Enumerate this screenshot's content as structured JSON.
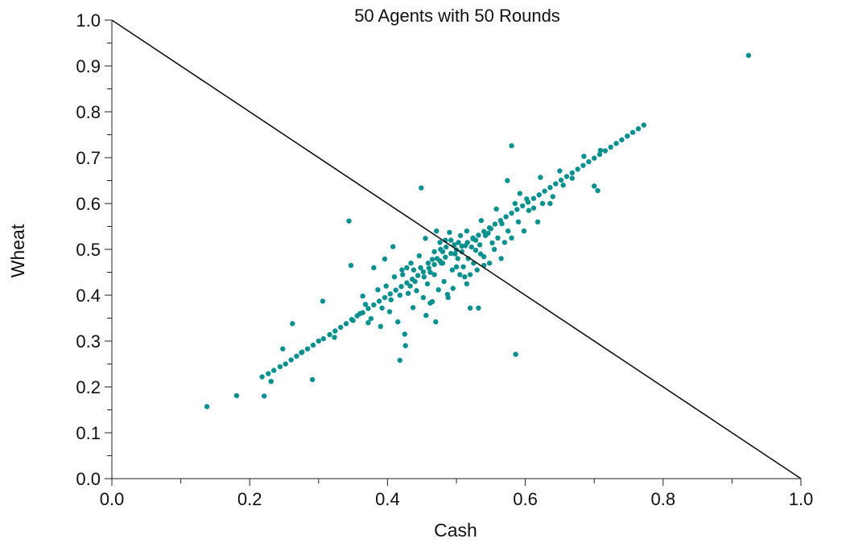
{
  "chart_data": {
    "type": "scatter",
    "title": "50 Agents with 50 Rounds",
    "xlabel": "Cash",
    "ylabel": "Wheat",
    "xlim": [
      0.0,
      1.0
    ],
    "ylim": [
      0.0,
      1.0
    ],
    "x_ticks": [
      "0.0",
      "0.2",
      "0.4",
      "0.6",
      "0.8",
      "1.0"
    ],
    "y_ticks": [
      "0.0",
      "0.1",
      "0.2",
      "0.3",
      "0.4",
      "0.5",
      "0.6",
      "0.7",
      "0.8",
      "0.9",
      "1.0"
    ],
    "grid": false,
    "legend": "none",
    "point_color": "#0a918f",
    "line_color": "#111111",
    "reference_line": {
      "x": [
        0.0,
        1.0
      ],
      "y": [
        1.0,
        0.0
      ]
    },
    "points": [
      [
        0.138,
        0.157
      ],
      [
        0.181,
        0.181
      ],
      [
        0.221,
        0.18
      ],
      [
        0.218,
        0.222
      ],
      [
        0.227,
        0.229
      ],
      [
        0.235,
        0.236
      ],
      [
        0.244,
        0.244
      ],
      [
        0.252,
        0.25
      ],
      [
        0.26,
        0.259
      ],
      [
        0.268,
        0.267
      ],
      [
        0.276,
        0.276
      ],
      [
        0.284,
        0.283
      ],
      [
        0.292,
        0.291
      ],
      [
        0.3,
        0.3
      ],
      [
        0.307,
        0.305
      ],
      [
        0.316,
        0.314
      ],
      [
        0.324,
        0.322
      ],
      [
        0.332,
        0.33
      ],
      [
        0.34,
        0.338
      ],
      [
        0.348,
        0.347
      ],
      [
        0.356,
        0.355
      ],
      [
        0.364,
        0.362
      ],
      [
        0.372,
        0.371
      ],
      [
        0.38,
        0.379
      ],
      [
        0.388,
        0.387
      ],
      [
        0.396,
        0.395
      ],
      [
        0.404,
        0.403
      ],
      [
        0.412,
        0.411
      ],
      [
        0.42,
        0.419
      ],
      [
        0.428,
        0.427
      ],
      [
        0.436,
        0.435
      ],
      [
        0.444,
        0.443
      ],
      [
        0.452,
        0.451
      ],
      [
        0.46,
        0.459
      ],
      [
        0.468,
        0.467
      ],
      [
        0.476,
        0.475
      ],
      [
        0.484,
        0.483
      ],
      [
        0.492,
        0.491
      ],
      [
        0.5,
        0.499
      ],
      [
        0.508,
        0.507
      ],
      [
        0.516,
        0.515
      ],
      [
        0.524,
        0.523
      ],
      [
        0.532,
        0.531
      ],
      [
        0.54,
        0.539
      ],
      [
        0.548,
        0.547
      ],
      [
        0.556,
        0.555
      ],
      [
        0.564,
        0.563
      ],
      [
        0.572,
        0.571
      ],
      [
        0.58,
        0.579
      ],
      [
        0.588,
        0.587
      ],
      [
        0.596,
        0.595
      ],
      [
        0.604,
        0.603
      ],
      [
        0.612,
        0.611
      ],
      [
        0.62,
        0.619
      ],
      [
        0.628,
        0.627
      ],
      [
        0.636,
        0.635
      ],
      [
        0.644,
        0.643
      ],
      [
        0.652,
        0.651
      ],
      [
        0.66,
        0.659
      ],
      [
        0.668,
        0.667
      ],
      [
        0.676,
        0.675
      ],
      [
        0.684,
        0.683
      ],
      [
        0.692,
        0.691
      ],
      [
        0.7,
        0.699
      ],
      [
        0.708,
        0.707
      ],
      [
        0.716,
        0.715
      ],
      [
        0.724,
        0.723
      ],
      [
        0.732,
        0.731
      ],
      [
        0.74,
        0.739
      ],
      [
        0.748,
        0.747
      ],
      [
        0.756,
        0.755
      ],
      [
        0.764,
        0.763
      ],
      [
        0.772,
        0.771
      ],
      [
        0.924,
        0.923
      ],
      [
        0.231,
        0.212
      ],
      [
        0.248,
        0.283
      ],
      [
        0.262,
        0.338
      ],
      [
        0.275,
        0.275
      ],
      [
        0.291,
        0.216
      ],
      [
        0.306,
        0.387
      ],
      [
        0.323,
        0.308
      ],
      [
        0.344,
        0.562
      ],
      [
        0.347,
        0.465
      ],
      [
        0.36,
        0.36
      ],
      [
        0.364,
        0.398
      ],
      [
        0.376,
        0.349
      ],
      [
        0.38,
        0.46
      ],
      [
        0.386,
        0.412
      ],
      [
        0.39,
        0.332
      ],
      [
        0.396,
        0.479
      ],
      [
        0.403,
        0.364
      ],
      [
        0.408,
        0.506
      ],
      [
        0.415,
        0.342
      ],
      [
        0.418,
        0.258
      ],
      [
        0.421,
        0.455
      ],
      [
        0.425,
        0.315
      ],
      [
        0.43,
        0.404
      ],
      [
        0.434,
        0.47
      ],
      [
        0.437,
        0.373
      ],
      [
        0.44,
        0.43
      ],
      [
        0.446,
        0.486
      ],
      [
        0.449,
        0.634
      ],
      [
        0.452,
        0.395
      ],
      [
        0.455,
        0.524
      ],
      [
        0.458,
        0.425
      ],
      [
        0.462,
        0.383
      ],
      [
        0.465,
        0.478
      ],
      [
        0.468,
        0.445
      ],
      [
        0.471,
        0.54
      ],
      [
        0.474,
        0.412
      ],
      [
        0.477,
        0.5
      ],
      [
        0.48,
        0.47
      ],
      [
        0.484,
        0.52
      ],
      [
        0.487,
        0.402
      ],
      [
        0.49,
        0.537
      ],
      [
        0.494,
        0.455
      ],
      [
        0.497,
        0.51
      ],
      [
        0.502,
        0.48
      ],
      [
        0.506,
        0.53
      ],
      [
        0.51,
        0.462
      ],
      [
        0.513,
        0.508
      ],
      [
        0.517,
        0.48
      ],
      [
        0.52,
        0.372
      ],
      [
        0.524,
        0.525
      ],
      [
        0.528,
        0.498
      ],
      [
        0.532,
        0.372
      ],
      [
        0.536,
        0.563
      ],
      [
        0.54,
        0.484
      ],
      [
        0.546,
        0.535
      ],
      [
        0.552,
        0.514
      ],
      [
        0.558,
        0.588
      ],
      [
        0.566,
        0.556
      ],
      [
        0.574,
        0.65
      ],
      [
        0.58,
        0.726
      ],
      [
        0.585,
        0.6
      ],
      [
        0.586,
        0.271
      ],
      [
        0.592,
        0.622
      ],
      [
        0.602,
        0.61
      ],
      [
        0.612,
        0.59
      ],
      [
        0.622,
        0.657
      ],
      [
        0.636,
        0.6
      ],
      [
        0.65,
        0.671
      ],
      [
        0.668,
        0.655
      ],
      [
        0.685,
        0.703
      ],
      [
        0.7,
        0.638
      ],
      [
        0.705,
        0.628
      ],
      [
        0.709,
        0.716
      ],
      [
        0.426,
        0.29
      ],
      [
        0.456,
        0.356
      ],
      [
        0.465,
        0.386
      ],
      [
        0.47,
        0.342
      ],
      [
        0.478,
        0.47
      ],
      [
        0.482,
        0.43
      ],
      [
        0.488,
        0.395
      ],
      [
        0.495,
        0.415
      ],
      [
        0.5,
        0.462
      ],
      [
        0.505,
        0.445
      ],
      [
        0.512,
        0.44
      ],
      [
        0.515,
        0.425
      ],
      [
        0.52,
        0.445
      ],
      [
        0.525,
        0.47
      ],
      [
        0.53,
        0.455
      ],
      [
        0.535,
        0.49
      ],
      [
        0.54,
        0.465
      ],
      [
        0.548,
        0.47
      ],
      [
        0.555,
        0.5
      ],
      [
        0.56,
        0.525
      ],
      [
        0.565,
        0.48
      ],
      [
        0.57,
        0.515
      ],
      [
        0.575,
        0.54
      ],
      [
        0.58,
        0.525
      ],
      [
        0.59,
        0.56
      ],
      [
        0.598,
        0.54
      ],
      [
        0.605,
        0.585
      ],
      [
        0.618,
        0.56
      ],
      [
        0.625,
        0.6
      ],
      [
        0.64,
        0.615
      ],
      [
        0.655,
        0.64
      ],
      [
        0.35,
        0.345
      ],
      [
        0.368,
        0.38
      ],
      [
        0.372,
        0.34
      ],
      [
        0.392,
        0.372
      ],
      [
        0.398,
        0.42
      ],
      [
        0.405,
        0.39
      ],
      [
        0.41,
        0.44
      ],
      [
        0.418,
        0.4
      ],
      [
        0.422,
        0.445
      ],
      [
        0.428,
        0.46
      ],
      [
        0.433,
        0.42
      ],
      [
        0.438,
        0.455
      ],
      [
        0.442,
        0.41
      ],
      [
        0.448,
        0.46
      ],
      [
        0.453,
        0.44
      ],
      [
        0.459,
        0.47
      ],
      [
        0.462,
        0.45
      ],
      [
        0.468,
        0.495
      ],
      [
        0.472,
        0.48
      ],
      [
        0.476,
        0.515
      ],
      [
        0.48,
        0.495
      ],
      [
        0.485,
        0.505
      ],
      [
        0.492,
        0.52
      ],
      [
        0.498,
        0.49
      ],
      [
        0.503,
        0.515
      ],
      [
        0.508,
        0.495
      ],
      [
        0.515,
        0.54
      ],
      [
        0.522,
        0.505
      ],
      [
        0.528,
        0.52
      ],
      [
        0.534,
        0.51
      ],
      [
        0.542,
        0.53
      ],
      [
        0.55,
        0.545
      ]
    ]
  }
}
